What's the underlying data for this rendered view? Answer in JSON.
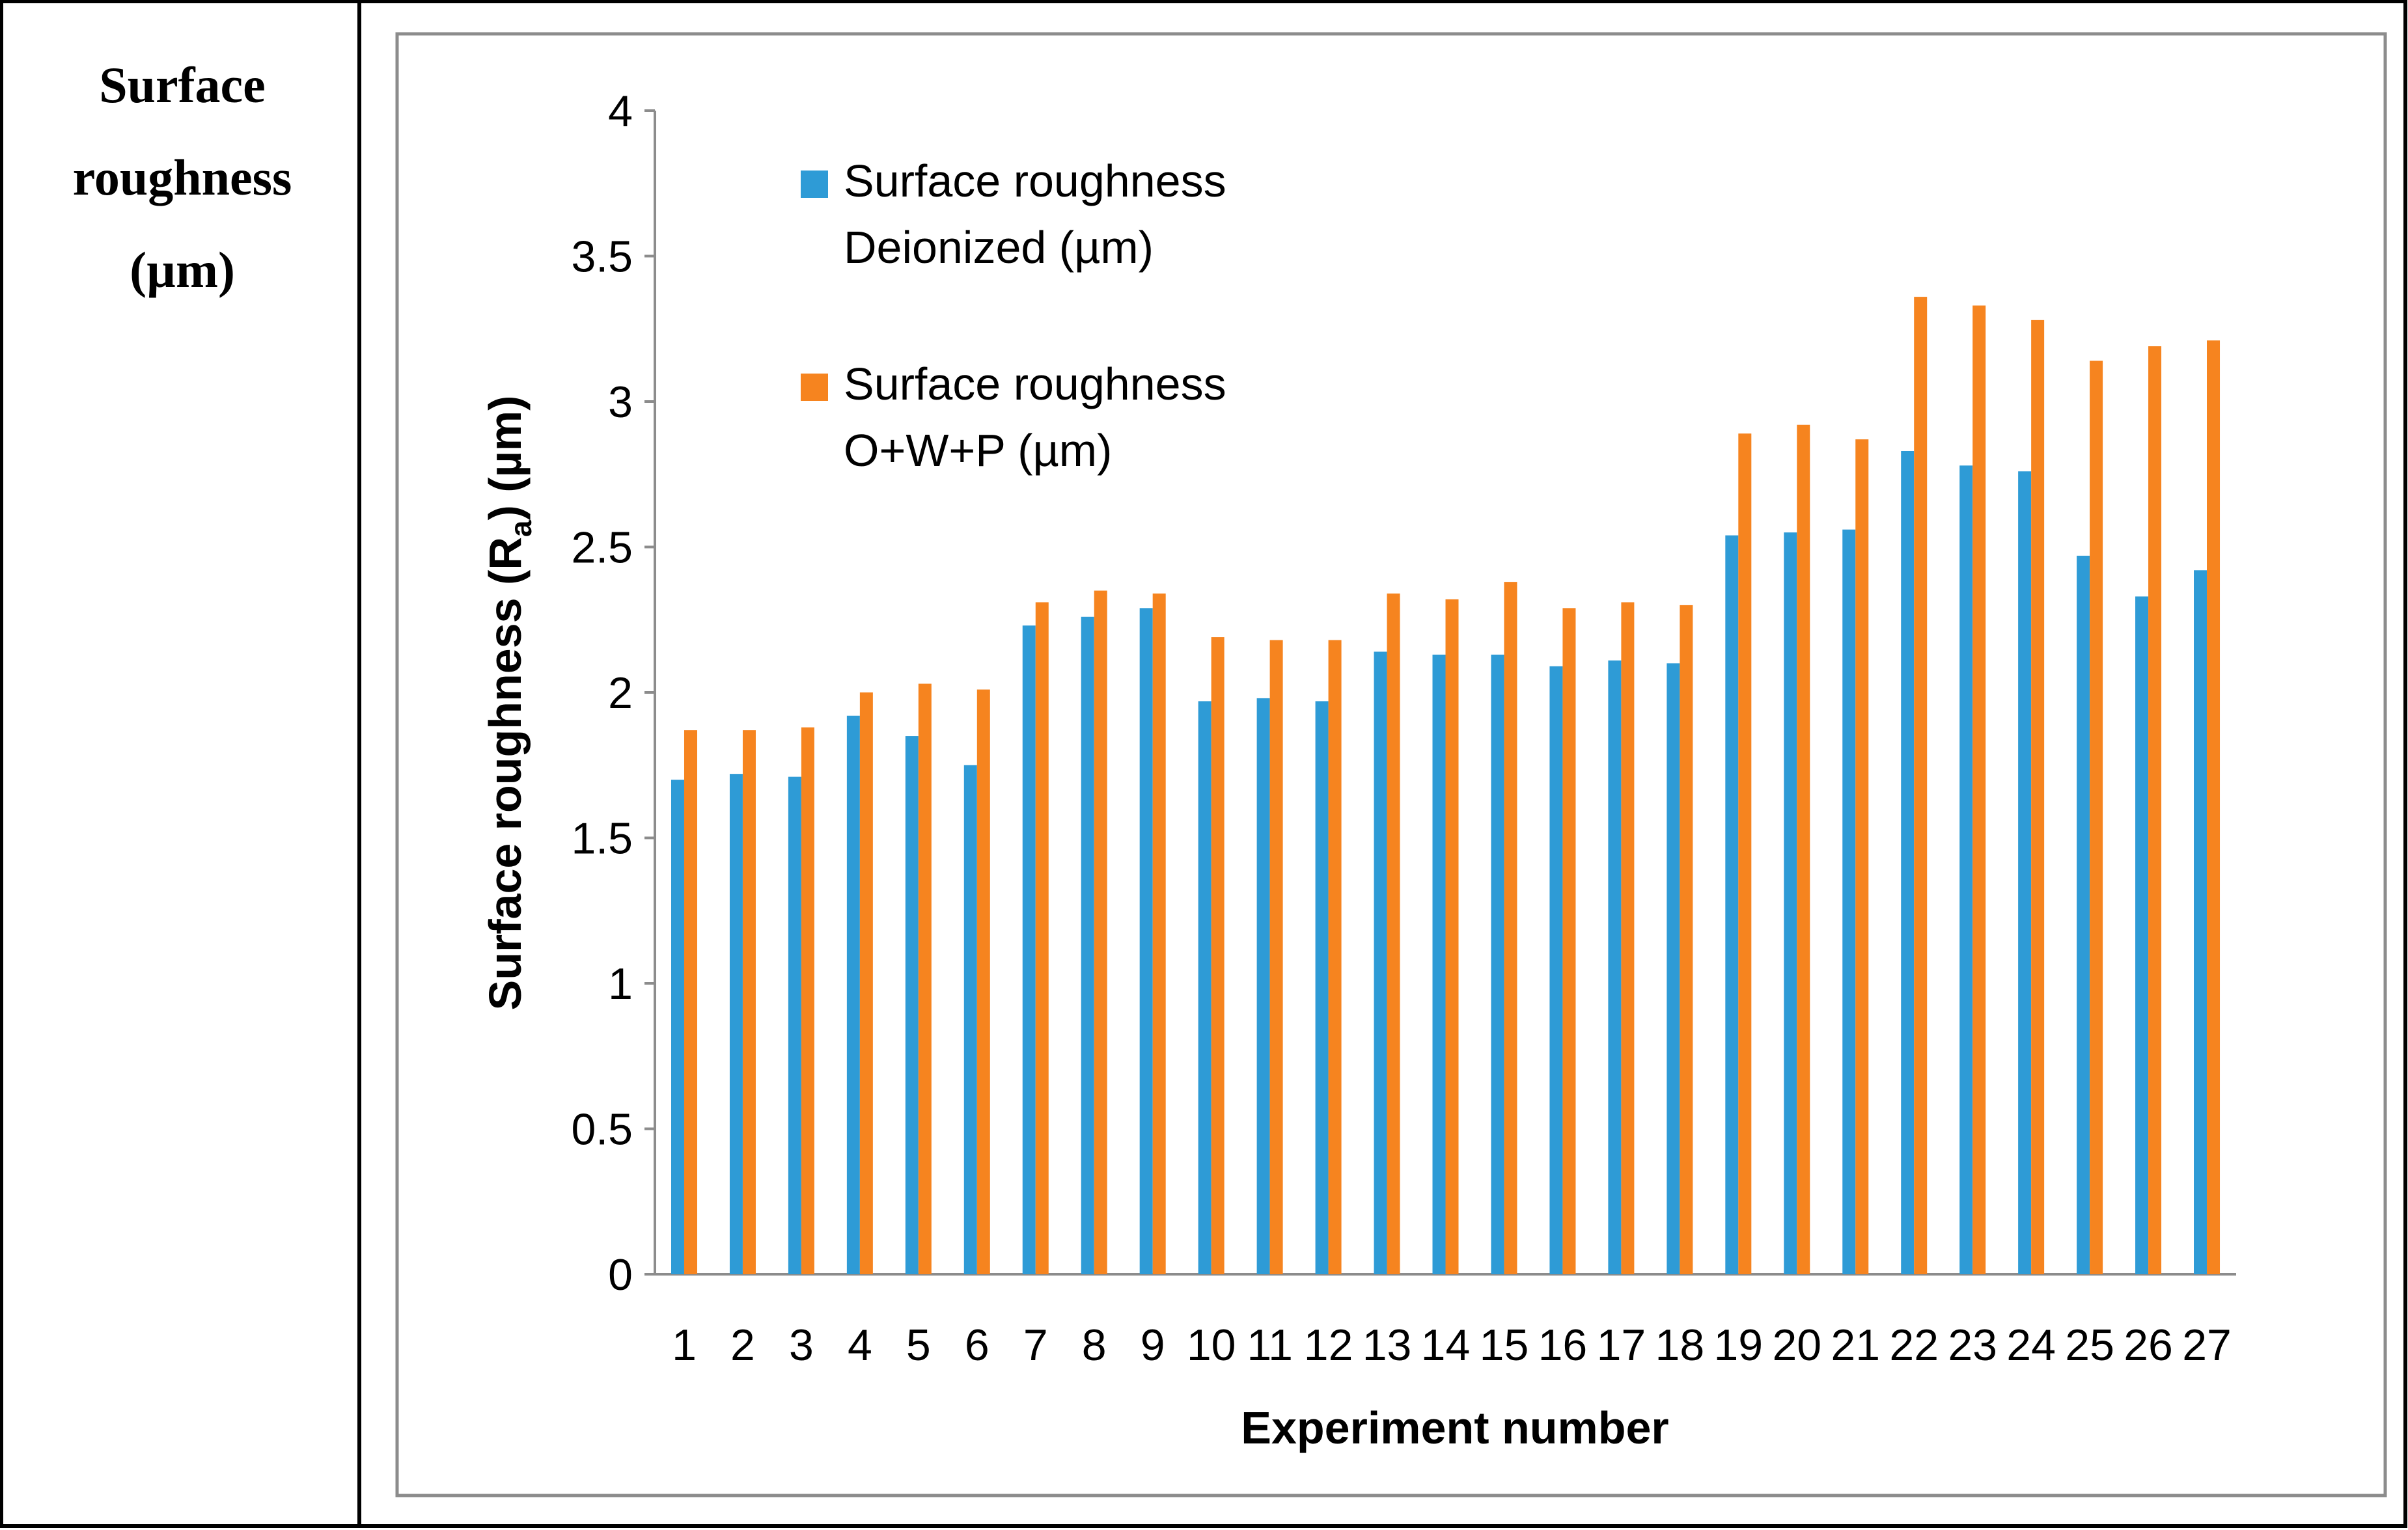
{
  "table": {
    "row_label_lines": [
      "Surface",
      "roughness",
      "(µm)"
    ]
  },
  "chart_data": {
    "type": "bar",
    "title": "",
    "xlabel": "Experiment number",
    "ylabel": "Surface roughness (R",
    "ylabel_sub": "a",
    "ylabel_tail": ") (µm)",
    "ylim": [
      0,
      4
    ],
    "yticks": [
      "0",
      "0.5",
      "1",
      "1.5",
      "2",
      "2.5",
      "3",
      "3.5",
      "4"
    ],
    "categories": [
      "1",
      "2",
      "3",
      "4",
      "5",
      "6",
      "7",
      "8",
      "9",
      "10",
      "11",
      "12",
      "13",
      "14",
      "15",
      "16",
      "17",
      "18",
      "19",
      "20",
      "21",
      "22",
      "23",
      "24",
      "25",
      "26",
      "27"
    ],
    "series": [
      {
        "name": "Surface roughness Deionized (µm)",
        "legend_lines": [
          "Surface roughness",
          "Deionized (µm)"
        ],
        "color": "#2E9BD6",
        "values": [
          1.7,
          1.72,
          1.71,
          1.92,
          1.85,
          1.75,
          2.23,
          2.26,
          2.29,
          1.97,
          1.98,
          1.97,
          2.14,
          2.13,
          2.13,
          2.09,
          2.11,
          2.1,
          2.54,
          2.55,
          2.56,
          2.83,
          2.78,
          2.76,
          2.47,
          2.33,
          2.42
        ]
      },
      {
        "name": "Surface roughness O+W+P (µm)",
        "legend_lines": [
          "Surface roughness",
          "O+W+P (µm)"
        ],
        "color": "#F6841F",
        "values": [
          1.87,
          1.87,
          1.88,
          2.0,
          2.03,
          2.01,
          2.31,
          2.35,
          2.34,
          2.19,
          2.18,
          2.18,
          2.34,
          2.32,
          2.38,
          2.29,
          2.31,
          2.3,
          2.89,
          2.92,
          2.87,
          3.36,
          3.33,
          3.28,
          3.14,
          3.19,
          3.21
        ]
      }
    ],
    "legend_position": "top-left",
    "grid": false
  }
}
